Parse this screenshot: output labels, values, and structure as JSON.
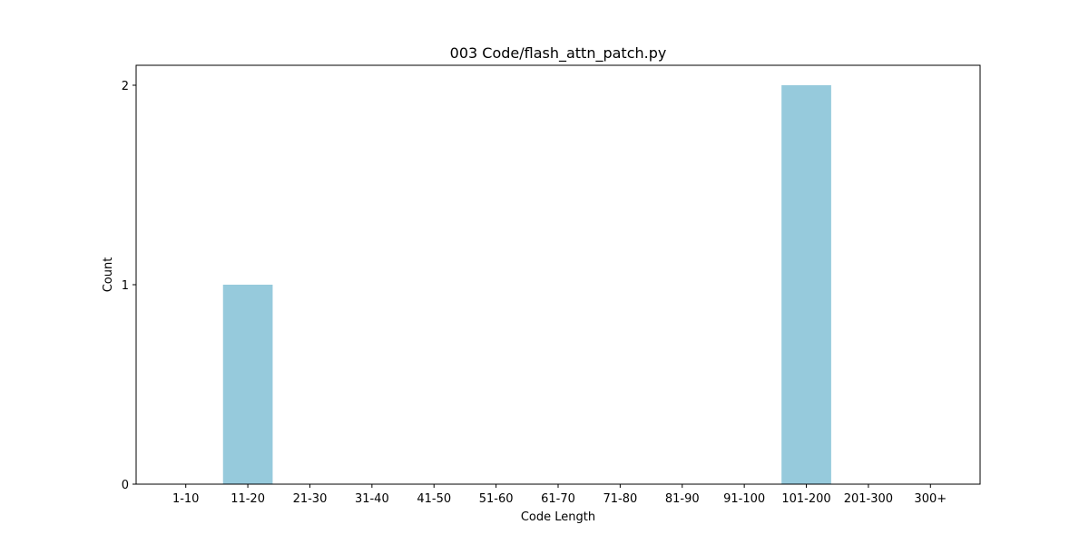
{
  "chart_data": {
    "type": "bar",
    "title": "003 Code/flash_attn_patch.py",
    "xlabel": "Code Length",
    "ylabel": "Count",
    "categories": [
      "1-10",
      "11-20",
      "21-30",
      "31-40",
      "41-50",
      "51-60",
      "61-70",
      "71-80",
      "81-90",
      "91-100",
      "101-200",
      "201-300",
      "300+"
    ],
    "values": [
      0,
      1,
      0,
      0,
      0,
      0,
      0,
      0,
      0,
      0,
      2,
      0,
      0
    ],
    "ylim": [
      0,
      2.1
    ],
    "yticks": [
      0,
      1,
      2
    ],
    "bar_color": "#96cadc",
    "grid": false,
    "legend": "none"
  }
}
